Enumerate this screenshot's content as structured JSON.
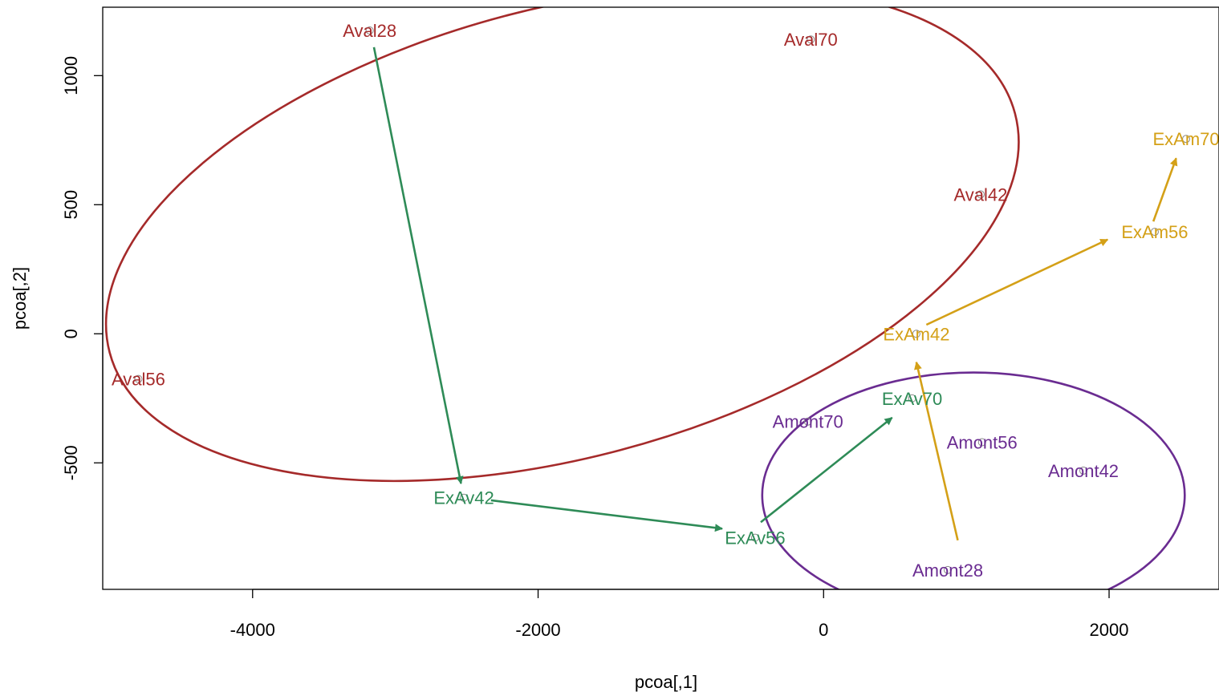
{
  "chart_data": {
    "type": "scatter",
    "title": "",
    "xlabel": "pcoa[,1]",
    "ylabel": "pcoa[,2]",
    "xlim": [
      -5050,
      2770
    ],
    "ylim": [
      -990,
      1265
    ],
    "xticks": [
      -4000,
      -2000,
      0,
      2000
    ],
    "yticks": [
      -500,
      0,
      500,
      1000
    ],
    "xtick_labels": [
      "-4000",
      "-2000",
      "0",
      "2000"
    ],
    "ytick_labels": [
      "-500",
      "0",
      "500",
      "1000"
    ],
    "grid": false,
    "legend": "none",
    "colors": {
      "Aval": "#a52a2a",
      "ExAv": "#2e8b57",
      "Amont": "#6a2c91",
      "ExAm": "#d4a017"
    },
    "points": [
      {
        "label": "Aval28",
        "group": "Aval",
        "x": -3180,
        "y": 1175
      },
      {
        "label": "Aval70",
        "group": "Aval",
        "x": -90,
        "y": 1140
      },
      {
        "label": "Aval42",
        "group": "Aval",
        "x": 1100,
        "y": 540
      },
      {
        "label": "Aval56",
        "group": "Aval",
        "x": -4800,
        "y": -175
      },
      {
        "label": "ExAv42",
        "group": "ExAv",
        "x": -2520,
        "y": -635
      },
      {
        "label": "ExAv56",
        "group": "ExAv",
        "x": -480,
        "y": -790
      },
      {
        "label": "ExAv70",
        "group": "ExAv",
        "x": 620,
        "y": -250
      },
      {
        "label": "ExAm42",
        "group": "ExAm",
        "x": 650,
        "y": 0
      },
      {
        "label": "ExAm56",
        "group": "ExAm",
        "x": 2320,
        "y": 395
      },
      {
        "label": "ExAm70",
        "group": "ExAm",
        "x": 2540,
        "y": 755
      },
      {
        "label": "Amont70",
        "group": "Amont",
        "x": -110,
        "y": -340
      },
      {
        "label": "Amont56",
        "group": "Amont",
        "x": 1110,
        "y": -420
      },
      {
        "label": "Amont42",
        "group": "Amont",
        "x": 1820,
        "y": -530
      },
      {
        "label": "Amont28",
        "group": "Amont",
        "x": 870,
        "y": -915
      }
    ],
    "arrows": [
      {
        "group": "ExAv",
        "x0": -3150,
        "y0": 1110,
        "x1": -2540,
        "y1": -580
      },
      {
        "group": "ExAv",
        "x0": -2330,
        "y0": -645,
        "x1": -710,
        "y1": -755
      },
      {
        "group": "ExAv",
        "x0": -440,
        "y0": -730,
        "x1": 480,
        "y1": -325
      },
      {
        "group": "ExAm",
        "x0": 940,
        "y0": -800,
        "x1": 650,
        "y1": -110
      },
      {
        "group": "ExAm",
        "x0": 720,
        "y0": 35,
        "x1": 1990,
        "y1": 365
      },
      {
        "group": "ExAm",
        "x0": 2310,
        "y0": 435,
        "x1": 2470,
        "y1": 680
      }
    ],
    "ellipses": [
      {
        "group": "Aval",
        "cx": -1830,
        "cy": 390,
        "rx": 3280,
        "ry": 870,
        "angle_deg": 14.8
      },
      {
        "group": "Amont",
        "cx": 1050,
        "cy": -625,
        "rx": 1480,
        "ry": 475,
        "angle_deg": 0
      }
    ]
  }
}
